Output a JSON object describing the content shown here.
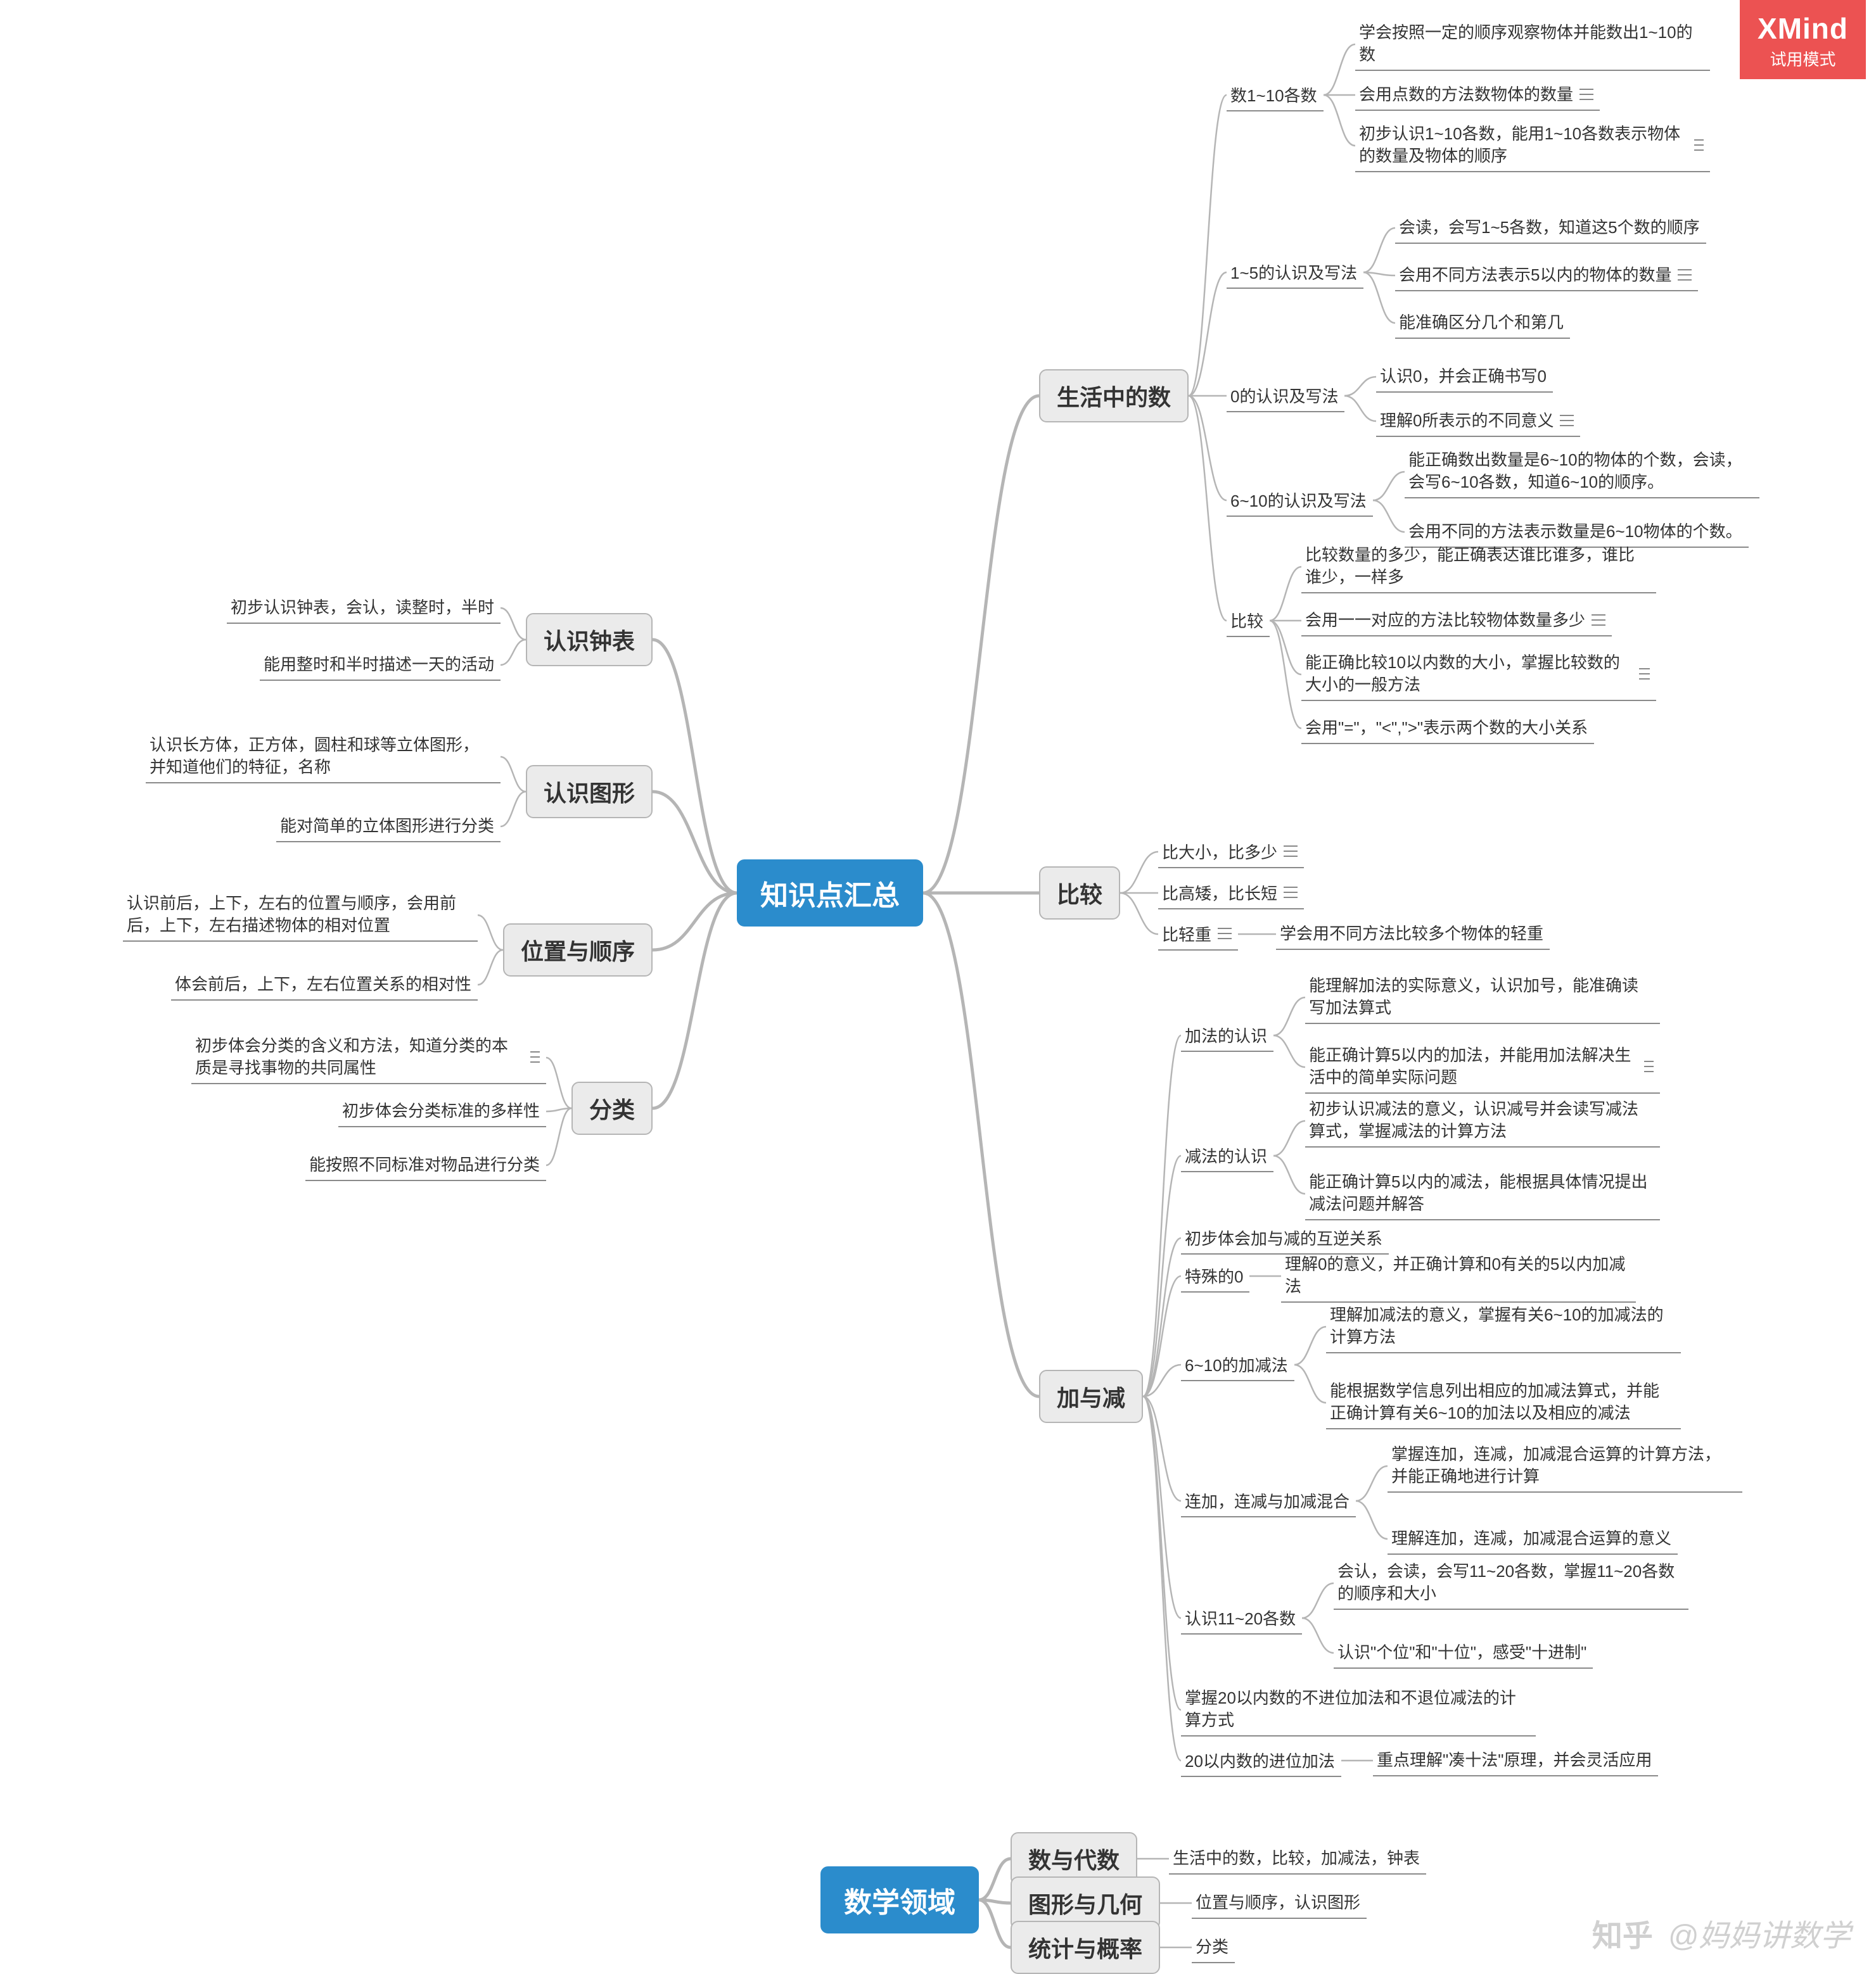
{
  "colors": {
    "root_bg": "#2b8ccc",
    "root_fg": "#ffffff",
    "branch_bg": "#ebebeb",
    "branch_border": "#b5b5b5",
    "branch_fg": "#333333",
    "leaf_fg": "#333333",
    "leaf_underline": "#8a8a8a",
    "connector_thick": "#b5b5b5",
    "connector_thin": "#b5b5b5",
    "background": "#ffffff",
    "logo_bg": "#ec5252",
    "logo_fg": "#ffffff",
    "watermark_fg": "#d0d0d0"
  },
  "logo": {
    "brand": "XMind",
    "mode": "试用模式"
  },
  "watermark": {
    "site": "知乎",
    "handle": "@妈妈讲数学"
  },
  "map1": {
    "root": {
      "label": "知识点汇总"
    },
    "left": {
      "clock": {
        "label": "认识钟表",
        "items": [
          "初步认识钟表，会认，读整时，半时",
          "能用整时和半时描述一天的活动"
        ]
      },
      "shapes": {
        "label": "认识图形",
        "items": [
          "认识长方体，正方体，圆柱和球等立体图形，并知道他们的特征，名称",
          "能对简单的立体图形进行分类"
        ]
      },
      "position": {
        "label": "位置与顺序",
        "items": [
          "认识前后，上下，左右的位置与顺序，会用前后，上下，左右描述物体的相对位置",
          "体会前后，上下，左右位置关系的相对性"
        ]
      },
      "classify": {
        "label": "分类",
        "items": [
          "初步体会分类的含义和方法，知道分类的本质是寻找事物的共同属性",
          "初步体会分类标准的多样性",
          "能按照不同标准对物品进行分类"
        ]
      }
    },
    "right": {
      "life_num": {
        "label": "生活中的数",
        "items": [
          {
            "label": "数1~10各数",
            "children": [
              "学会按照一定的顺序观察物体并能数出1~10的数",
              "会用点数的方法数物体的数量",
              "初步认识1~10各数，能用1~10各数表示物体的数量及物体的顺序"
            ]
          },
          {
            "label": "1~5的认识及写法",
            "children": [
              "会读，会写1~5各数，知道这5个数的顺序",
              "会用不同方法表示5以内的物体的数量",
              "能准确区分几个和第几"
            ]
          },
          {
            "label": "0的认识及写法",
            "children": [
              "认识0，并会正确书写0",
              "理解0所表示的不同意义"
            ]
          },
          {
            "label": "6~10的认识及写法",
            "children": [
              "能正确数出数量是6~10的物体的个数，会读，会写6~10各数，知道6~10的顺序。",
              "会用不同的方法表示数量是6~10物体的个数。"
            ]
          },
          {
            "label": "比较",
            "children": [
              "比较数量的多少，能正确表达谁比谁多，谁比谁少，一样多",
              "会用一一对应的方法比较物体数量多少",
              "能正确比较10以内数的大小，掌握比较数的大小的一般方法",
              "会用\"=\"，\"<\",\">\"表示两个数的大小关系"
            ]
          }
        ]
      },
      "compare": {
        "label": "比较",
        "items": [
          "比大小，比多少",
          "比高矮，比长短",
          "比轻重"
        ],
        "side_note": "学会用不同方法比较多个物体的轻重"
      },
      "add_sub": {
        "label": "加与减",
        "items": [
          {
            "label": "加法的认识",
            "children": [
              "能理解加法的实际意义，认识加号，能准确读写加法算式",
              "能正确计算5以内的加法，并能用加法解决生活中的简单实际问题"
            ]
          },
          {
            "label": "减法的认识",
            "children": [
              "初步认识减法的意义，认识减号并会读写减法算式，掌握减法的计算方法",
              "能正确计算5以内的减法，能根据具体情况提出减法问题并解答"
            ]
          },
          {
            "label": "初步体会加与减的互逆关系",
            "children": []
          },
          {
            "label": "特殊的0",
            "children": [
              "理解0的意义，并正确计算和0有关的5以内加减法"
            ]
          },
          {
            "label": "6~10的加减法",
            "children": [
              "理解加减法的意义，掌握有关6~10的加减法的计算方法",
              "能根据数学信息列出相应的加减法算式，并能正确计算有关6~10的加法以及相应的减法"
            ]
          },
          {
            "label": "连加，连减与加减混合",
            "children": [
              "掌握连加，连减，加减混合运算的计算方法，并能正确地进行计算",
              "理解连加，连减，加减混合运算的意义"
            ]
          },
          {
            "label": "认识11~20各数",
            "children": [
              "会认，会读，会写11~20各数，掌握11~20各数的顺序和大小",
              "认识\"个位\"和\"十位\"，感受\"十进制\""
            ]
          },
          {
            "label": "掌握20以内数的不进位加法和不退位减法的计算方式",
            "children": []
          },
          {
            "label": "20以内数的进位加法",
            "children": [
              "重点理解\"凑十法\"原理，并会灵活应用"
            ]
          }
        ]
      }
    }
  },
  "map2": {
    "root": {
      "label": "数学领域"
    },
    "rows": [
      {
        "label": "数与代数",
        "note": "生活中的数，比较，加减法，钟表"
      },
      {
        "label": "图形与几何",
        "note": "位置与顺序，认识图形"
      },
      {
        "label": "统计与概率",
        "note": "分类"
      }
    ]
  }
}
